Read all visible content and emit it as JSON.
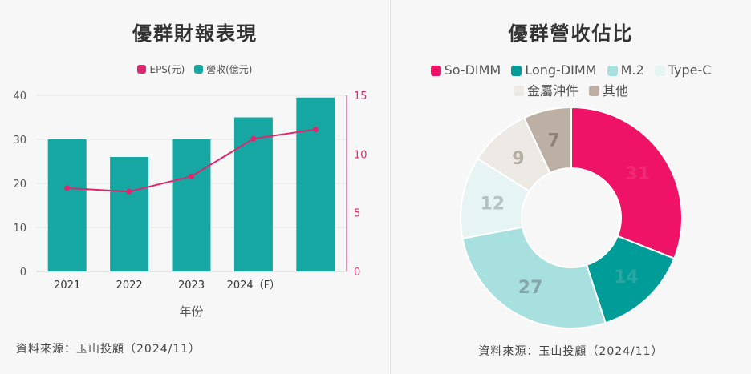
{
  "colors": {
    "teal": "#17a7a2",
    "eps_line": "#e0266f",
    "so_dimm": "#ee1366",
    "long_dimm": "#009c97",
    "m2": "#a8e0df",
    "type_c": "#e6f4f4",
    "metal": "#ede9e4",
    "other": "#bbb0a3"
  },
  "chart_data": [
    {
      "type": "bar",
      "title": "優群財報表現",
      "xlabel": "年份",
      "ylabel": "",
      "categories": [
        "2021",
        "2022",
        "2023",
        "2024（F）",
        ""
      ],
      "series": [
        {
          "name": "營收(億元)",
          "type": "bar",
          "axis": "left",
          "values": [
            30,
            26,
            30,
            35,
            39.5
          ]
        },
        {
          "name": "EPS(元)",
          "type": "line",
          "axis": "right",
          "values": [
            7.1,
            6.8,
            8.1,
            11.3,
            12.1
          ]
        }
      ],
      "ylim": [
        0,
        40
      ],
      "yticks": [
        "0",
        "10",
        "20",
        "30",
        "40"
      ],
      "y2lim": [
        0,
        15
      ],
      "y2ticks": [
        "0",
        "5",
        "10",
        "15"
      ],
      "legend_position": "top",
      "grid": true
    },
    {
      "type": "pie",
      "title": "優群營收佔比",
      "donut": true,
      "labels": [
        "So-DIMM",
        "Long-DIMM",
        "M.2",
        "Type-C",
        "金屬沖件",
        "其他"
      ],
      "values": [
        31,
        14,
        27,
        12,
        9,
        7
      ],
      "legend_position": "top"
    }
  ],
  "left": {
    "title": "優群財報表現",
    "legend": [
      {
        "label": "EPS(元)",
        "color": "#e0266f"
      },
      {
        "label": "營收(億元)",
        "color": "#17a7a2"
      }
    ],
    "source": "資料來源：玉山投顧（2024/11）"
  },
  "right": {
    "title": "優群營收佔比",
    "legend": [
      {
        "label": "So-DIMM",
        "color": "#ee1366"
      },
      {
        "label": "Long-DIMM",
        "color": "#009c97"
      },
      {
        "label": "M.2",
        "color": "#a8e0df"
      },
      {
        "label": "Type-C",
        "color": "#e6f4f4"
      },
      {
        "label": "金屬沖件",
        "color": "#ede9e4"
      },
      {
        "label": "其他",
        "color": "#bbb0a3"
      }
    ],
    "source": "資料來源：玉山投顧（2024/11）"
  }
}
